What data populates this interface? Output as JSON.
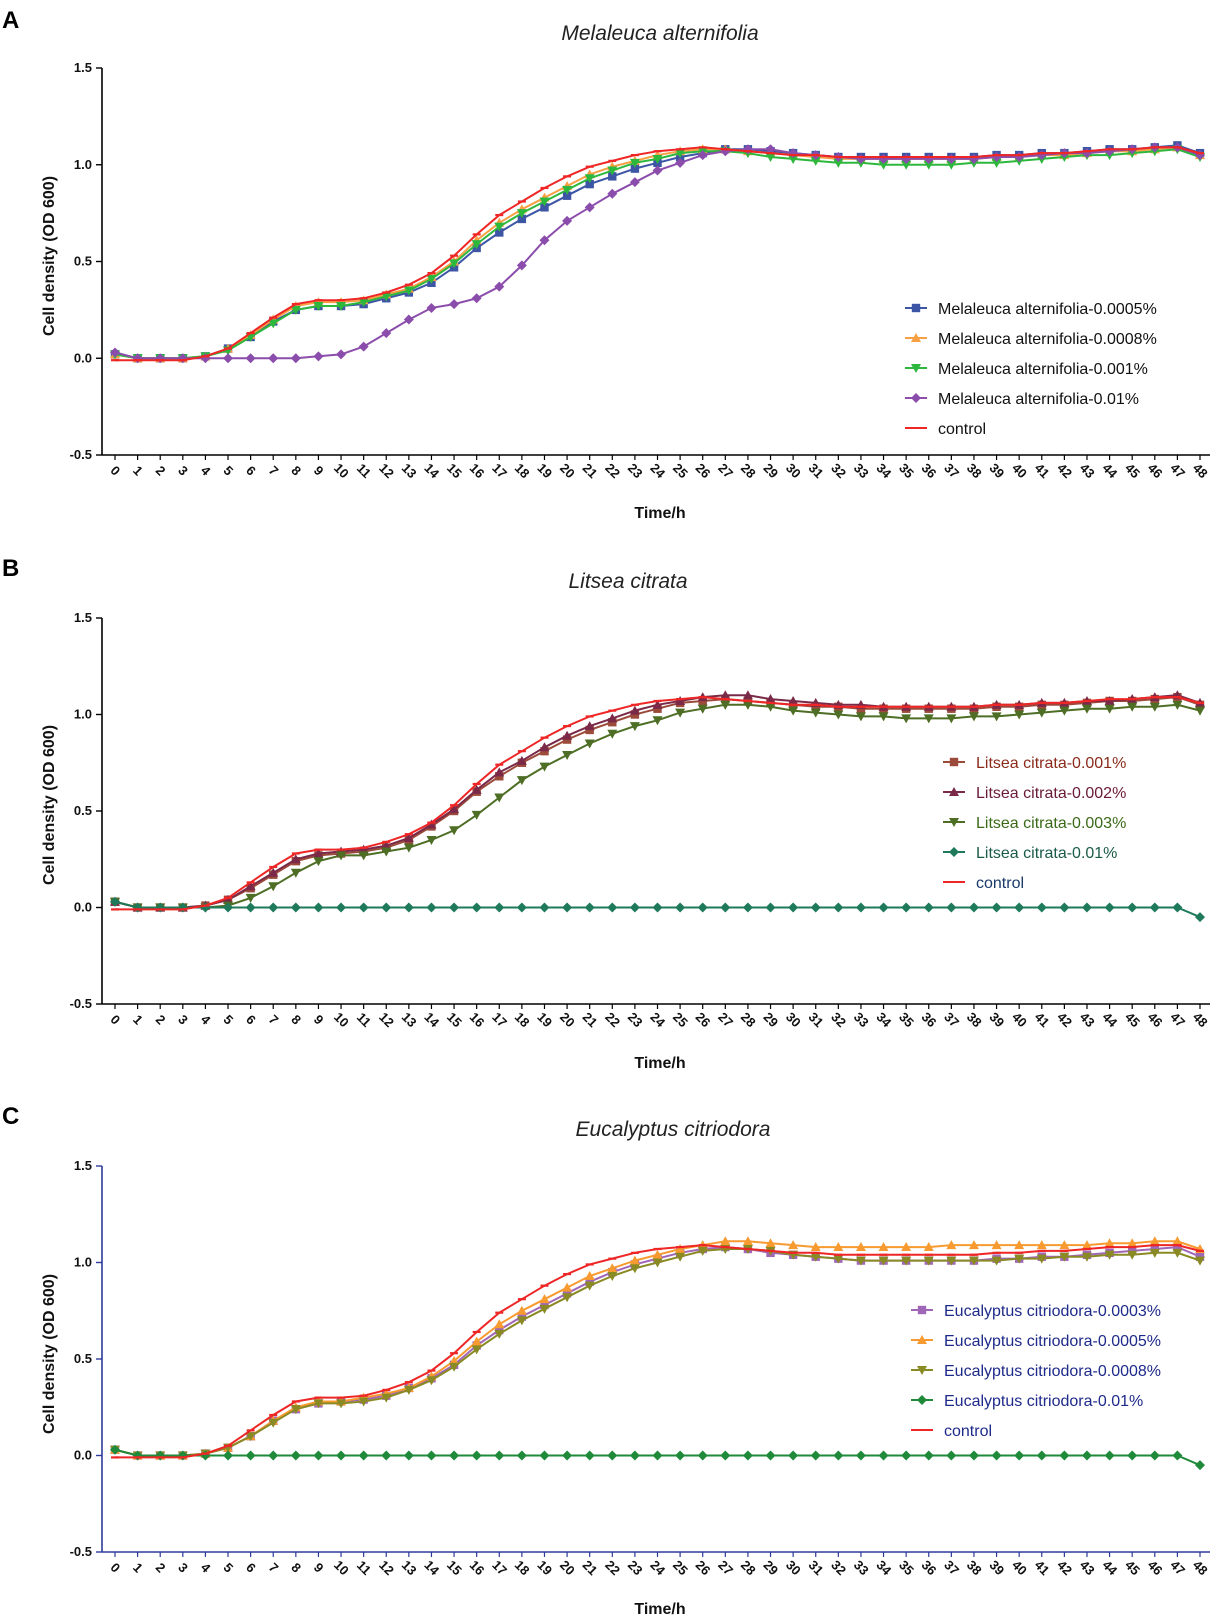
{
  "chart_data": [
    {
      "type": "line",
      "panel": "A",
      "title": "Melaleuca alternifolia",
      "xlabel": "Time/h",
      "ylabel": "Cell density (OD 600)",
      "ylim": [
        -0.5,
        1.5
      ],
      "yticks": [
        "1.5",
        "1.0",
        "0.5",
        "0.0",
        "-0.5"
      ],
      "x": [
        0,
        1,
        2,
        3,
        4,
        5,
        6,
        7,
        8,
        9,
        10,
        11,
        12,
        13,
        14,
        15,
        16,
        17,
        18,
        19,
        20,
        21,
        22,
        23,
        24,
        25,
        26,
        27,
        28,
        29,
        30,
        31,
        32,
        33,
        34,
        35,
        36,
        37,
        38,
        39,
        40,
        41,
        42,
        43,
        44,
        45,
        46,
        47,
        48
      ],
      "axis_color": "#000000",
      "legend_position": "right",
      "series": [
        {
          "name": "Melaleuca alternifolia-0.0005%",
          "color": "#3c55a5",
          "text_color": "#111111",
          "marker": "square",
          "values": [
            0.02,
            0.0,
            0.0,
            0.0,
            0.01,
            0.05,
            0.11,
            0.19,
            0.25,
            0.27,
            0.27,
            0.28,
            0.31,
            0.34,
            0.39,
            0.47,
            0.57,
            0.65,
            0.72,
            0.78,
            0.84,
            0.9,
            0.94,
            0.98,
            1.01,
            1.04,
            1.06,
            1.08,
            1.08,
            1.07,
            1.06,
            1.05,
            1.04,
            1.04,
            1.04,
            1.04,
            1.04,
            1.04,
            1.04,
            1.05,
            1.05,
            1.06,
            1.06,
            1.07,
            1.08,
            1.08,
            1.09,
            1.1,
            1.06
          ]
        },
        {
          "name": "Melaleuca alternifolia-0.0008%",
          "color": "#f7a043",
          "text_color": "#111111",
          "marker": "triangle-up",
          "values": [
            0.02,
            0.0,
            0.0,
            0.0,
            0.01,
            0.05,
            0.12,
            0.2,
            0.27,
            0.29,
            0.29,
            0.3,
            0.33,
            0.36,
            0.42,
            0.5,
            0.61,
            0.7,
            0.77,
            0.83,
            0.89,
            0.95,
            0.99,
            1.02,
            1.05,
            1.07,
            1.08,
            1.08,
            1.07,
            1.06,
            1.05,
            1.04,
            1.03,
            1.03,
            1.03,
            1.03,
            1.03,
            1.03,
            1.03,
            1.04,
            1.04,
            1.05,
            1.05,
            1.06,
            1.07,
            1.07,
            1.08,
            1.09,
            1.05
          ]
        },
        {
          "name": "Melaleuca alternifolia-0.001%",
          "color": "#2db83d",
          "text_color": "#111111",
          "marker": "triangle-down",
          "values": [
            0.02,
            0.0,
            0.0,
            0.0,
            0.01,
            0.04,
            0.11,
            0.18,
            0.25,
            0.27,
            0.27,
            0.29,
            0.32,
            0.35,
            0.41,
            0.49,
            0.59,
            0.68,
            0.75,
            0.81,
            0.87,
            0.93,
            0.97,
            1.01,
            1.03,
            1.06,
            1.07,
            1.07,
            1.06,
            1.04,
            1.03,
            1.02,
            1.01,
            1.01,
            1.0,
            1.0,
            1.0,
            1.0,
            1.01,
            1.01,
            1.02,
            1.03,
            1.04,
            1.05,
            1.05,
            1.06,
            1.07,
            1.08,
            1.04
          ]
        },
        {
          "name": "Melaleuca alternifolia-0.01%",
          "color": "#8b4dab",
          "text_color": "#111111",
          "marker": "diamond",
          "values": [
            0.03,
            0.0,
            0.0,
            0.0,
            0.0,
            0.0,
            0.0,
            0.0,
            0.0,
            0.01,
            0.02,
            0.06,
            0.13,
            0.2,
            0.26,
            0.28,
            0.31,
            0.37,
            0.48,
            0.61,
            0.71,
            0.78,
            0.85,
            0.91,
            0.97,
            1.01,
            1.05,
            1.07,
            1.08,
            1.08,
            1.06,
            1.05,
            1.04,
            1.03,
            1.03,
            1.03,
            1.03,
            1.03,
            1.03,
            1.04,
            1.04,
            1.05,
            1.06,
            1.06,
            1.07,
            1.08,
            1.09,
            1.09,
            1.05
          ]
        },
        {
          "name": "control",
          "color": "#ee2626",
          "text_color": "#111111",
          "marker": "dash",
          "values": [
            -0.01,
            -0.01,
            -0.01,
            -0.01,
            0.01,
            0.05,
            0.13,
            0.21,
            0.28,
            0.3,
            0.3,
            0.31,
            0.34,
            0.38,
            0.44,
            0.53,
            0.64,
            0.74,
            0.81,
            0.88,
            0.94,
            0.99,
            1.02,
            1.05,
            1.07,
            1.08,
            1.09,
            1.08,
            1.07,
            1.06,
            1.05,
            1.05,
            1.04,
            1.04,
            1.04,
            1.04,
            1.04,
            1.04,
            1.04,
            1.05,
            1.05,
            1.06,
            1.06,
            1.07,
            1.08,
            1.08,
            1.09,
            1.09,
            1.06
          ]
        }
      ]
    },
    {
      "type": "line",
      "panel": "B",
      "title": "Litsea citrata",
      "xlabel": "Time/h",
      "ylabel": "Cell density (OD 600)",
      "ylim": [
        -0.5,
        1.5
      ],
      "yticks": [
        "1.5",
        "1.0",
        "0.5",
        "0.0",
        "-0.5"
      ],
      "x": [
        0,
        1,
        2,
        3,
        4,
        5,
        6,
        7,
        8,
        9,
        10,
        11,
        12,
        13,
        14,
        15,
        16,
        17,
        18,
        19,
        20,
        21,
        22,
        23,
        24,
        25,
        26,
        27,
        28,
        29,
        30,
        31,
        32,
        33,
        34,
        35,
        36,
        37,
        38,
        39,
        40,
        41,
        42,
        43,
        44,
        45,
        46,
        47,
        48
      ],
      "axis_color": "#000000",
      "legend_position": "right",
      "series": [
        {
          "name": "Litsea citrata-0.001%",
          "color": "#9c4a3a",
          "text_color": "#8a2a1a",
          "marker": "square",
          "values": [
            0.03,
            0.0,
            0.0,
            0.0,
            0.01,
            0.04,
            0.1,
            0.17,
            0.24,
            0.27,
            0.28,
            0.29,
            0.31,
            0.35,
            0.42,
            0.5,
            0.6,
            0.68,
            0.75,
            0.81,
            0.87,
            0.92,
            0.96,
            1.0,
            1.03,
            1.06,
            1.07,
            1.08,
            1.07,
            1.06,
            1.05,
            1.04,
            1.04,
            1.03,
            1.03,
            1.03,
            1.03,
            1.03,
            1.03,
            1.04,
            1.04,
            1.05,
            1.05,
            1.06,
            1.07,
            1.07,
            1.08,
            1.09,
            1.05
          ]
        },
        {
          "name": "Litsea citrata-0.002%",
          "color": "#7a2a48",
          "text_color": "#6a1a38",
          "marker": "triangle-up",
          "values": [
            0.03,
            0.0,
            0.0,
            0.0,
            0.01,
            0.04,
            0.11,
            0.18,
            0.25,
            0.28,
            0.29,
            0.3,
            0.32,
            0.36,
            0.43,
            0.51,
            0.61,
            0.7,
            0.76,
            0.83,
            0.89,
            0.94,
            0.98,
            1.02,
            1.05,
            1.07,
            1.09,
            1.1,
            1.1,
            1.08,
            1.07,
            1.06,
            1.05,
            1.05,
            1.04,
            1.04,
            1.04,
            1.04,
            1.04,
            1.05,
            1.05,
            1.06,
            1.06,
            1.07,
            1.07,
            1.08,
            1.09,
            1.1,
            1.06
          ]
        },
        {
          "name": "Litsea citrata-0.003%",
          "color": "#4d6e24",
          "text_color": "#3a6a18",
          "marker": "triangle-down",
          "values": [
            0.03,
            0.0,
            0.0,
            0.0,
            0.0,
            0.01,
            0.05,
            0.11,
            0.18,
            0.24,
            0.27,
            0.27,
            0.29,
            0.31,
            0.35,
            0.4,
            0.48,
            0.57,
            0.66,
            0.73,
            0.79,
            0.85,
            0.9,
            0.94,
            0.97,
            1.01,
            1.03,
            1.05,
            1.05,
            1.04,
            1.02,
            1.01,
            1.0,
            0.99,
            0.99,
            0.98,
            0.98,
            0.98,
            0.99,
            0.99,
            1.0,
            1.01,
            1.02,
            1.03,
            1.03,
            1.04,
            1.04,
            1.05,
            1.02
          ]
        },
        {
          "name": "Litsea citrata-0.01%",
          "color": "#1e7a5a",
          "text_color": "#1a5a48",
          "marker": "diamond",
          "values": [
            0.03,
            0.0,
            0.0,
            0.0,
            0.0,
            0.0,
            0.0,
            0.0,
            0.0,
            0.0,
            0.0,
            0.0,
            0.0,
            0.0,
            0.0,
            0.0,
            0.0,
            0.0,
            0.0,
            0.0,
            0.0,
            0.0,
            0.0,
            0.0,
            0.0,
            0.0,
            0.0,
            0.0,
            0.0,
            0.0,
            0.0,
            0.0,
            0.0,
            0.0,
            0.0,
            0.0,
            0.0,
            0.0,
            0.0,
            0.0,
            0.0,
            0.0,
            0.0,
            0.0,
            0.0,
            0.0,
            0.0,
            0.0,
            -0.05
          ]
        },
        {
          "name": "control",
          "color": "#ee2626",
          "text_color": "#1a3a6a",
          "marker": "dash",
          "values": [
            -0.01,
            -0.01,
            -0.01,
            -0.01,
            0.01,
            0.05,
            0.13,
            0.21,
            0.28,
            0.3,
            0.3,
            0.31,
            0.34,
            0.38,
            0.44,
            0.53,
            0.64,
            0.74,
            0.81,
            0.88,
            0.94,
            0.99,
            1.02,
            1.05,
            1.07,
            1.08,
            1.09,
            1.08,
            1.07,
            1.06,
            1.05,
            1.05,
            1.04,
            1.04,
            1.04,
            1.04,
            1.04,
            1.04,
            1.04,
            1.05,
            1.05,
            1.06,
            1.06,
            1.07,
            1.08,
            1.08,
            1.09,
            1.09,
            1.06
          ]
        }
      ]
    },
    {
      "type": "line",
      "panel": "C",
      "title": "Eucalyptus citriodora",
      "xlabel": "Time/h",
      "ylabel": "Cell density (OD 600)",
      "ylim": [
        -0.5,
        1.5
      ],
      "yticks": [
        "1.5",
        "1.0",
        "0.5",
        "0.0",
        "-0.5"
      ],
      "x": [
        0,
        1,
        2,
        3,
        4,
        5,
        6,
        7,
        8,
        9,
        10,
        11,
        12,
        13,
        14,
        15,
        16,
        17,
        18,
        19,
        20,
        21,
        22,
        23,
        24,
        25,
        26,
        27,
        28,
        29,
        30,
        31,
        32,
        33,
        34,
        35,
        36,
        37,
        38,
        39,
        40,
        41,
        42,
        43,
        44,
        45,
        46,
        47,
        48
      ],
      "axis_color": "#2e3a9a",
      "legend_position": "right",
      "series": [
        {
          "name": "Eucalyptus citriodora-0.0003%",
          "color": "#a066b8",
          "text_color": "#1e2a8a",
          "marker": "square",
          "values": [
            0.03,
            0.0,
            0.0,
            0.0,
            0.01,
            0.04,
            0.1,
            0.18,
            0.24,
            0.27,
            0.28,
            0.29,
            0.31,
            0.35,
            0.4,
            0.47,
            0.57,
            0.65,
            0.72,
            0.78,
            0.84,
            0.9,
            0.95,
            0.99,
            1.02,
            1.05,
            1.07,
            1.08,
            1.07,
            1.05,
            1.04,
            1.03,
            1.02,
            1.01,
            1.01,
            1.01,
            1.01,
            1.01,
            1.01,
            1.02,
            1.02,
            1.03,
            1.03,
            1.04,
            1.05,
            1.06,
            1.07,
            1.08,
            1.03
          ]
        },
        {
          "name": "Eucalyptus citriodora-0.0005%",
          "color": "#f79a30",
          "text_color": "#1e2a8a",
          "marker": "triangle-up",
          "values": [
            0.03,
            0.0,
            0.0,
            0.0,
            0.01,
            0.04,
            0.1,
            0.18,
            0.25,
            0.28,
            0.28,
            0.3,
            0.32,
            0.35,
            0.41,
            0.49,
            0.59,
            0.68,
            0.75,
            0.81,
            0.87,
            0.93,
            0.97,
            1.01,
            1.04,
            1.07,
            1.09,
            1.11,
            1.11,
            1.1,
            1.09,
            1.08,
            1.08,
            1.08,
            1.08,
            1.08,
            1.08,
            1.09,
            1.09,
            1.09,
            1.09,
            1.09,
            1.09,
            1.09,
            1.1,
            1.1,
            1.11,
            1.11,
            1.07
          ]
        },
        {
          "name": "Eucalyptus citriodora-0.0008%",
          "color": "#8a8a24",
          "text_color": "#1e2a8a",
          "marker": "triangle-down",
          "values": [
            0.03,
            0.0,
            0.0,
            0.0,
            0.01,
            0.04,
            0.1,
            0.17,
            0.24,
            0.27,
            0.27,
            0.28,
            0.3,
            0.34,
            0.39,
            0.46,
            0.55,
            0.63,
            0.7,
            0.76,
            0.82,
            0.88,
            0.93,
            0.97,
            1.0,
            1.03,
            1.06,
            1.07,
            1.07,
            1.06,
            1.04,
            1.03,
            1.02,
            1.01,
            1.01,
            1.01,
            1.01,
            1.01,
            1.01,
            1.01,
            1.02,
            1.02,
            1.03,
            1.03,
            1.04,
            1.04,
            1.05,
            1.05,
            1.01
          ]
        },
        {
          "name": "Eucalyptus citriodora-0.01%",
          "color": "#1e8a3a",
          "text_color": "#1e2a8a",
          "marker": "diamond",
          "values": [
            0.03,
            0.0,
            0.0,
            0.0,
            0.0,
            0.0,
            0.0,
            0.0,
            0.0,
            0.0,
            0.0,
            0.0,
            0.0,
            0.0,
            0.0,
            0.0,
            0.0,
            0.0,
            0.0,
            0.0,
            0.0,
            0.0,
            0.0,
            0.0,
            0.0,
            0.0,
            0.0,
            0.0,
            0.0,
            0.0,
            0.0,
            0.0,
            0.0,
            0.0,
            0.0,
            0.0,
            0.0,
            0.0,
            0.0,
            0.0,
            0.0,
            0.0,
            0.0,
            0.0,
            0.0,
            0.0,
            0.0,
            0.0,
            -0.05
          ]
        },
        {
          "name": "control",
          "color": "#ee2626",
          "text_color": "#1e2a8a",
          "marker": "dash",
          "values": [
            -0.01,
            -0.01,
            -0.01,
            -0.01,
            0.01,
            0.05,
            0.13,
            0.21,
            0.28,
            0.3,
            0.3,
            0.31,
            0.34,
            0.38,
            0.44,
            0.53,
            0.64,
            0.74,
            0.81,
            0.88,
            0.94,
            0.99,
            1.02,
            1.05,
            1.07,
            1.08,
            1.09,
            1.08,
            1.07,
            1.06,
            1.05,
            1.05,
            1.04,
            1.04,
            1.04,
            1.04,
            1.04,
            1.04,
            1.04,
            1.05,
            1.05,
            1.06,
            1.06,
            1.07,
            1.08,
            1.08,
            1.09,
            1.09,
            1.06
          ]
        }
      ]
    }
  ]
}
